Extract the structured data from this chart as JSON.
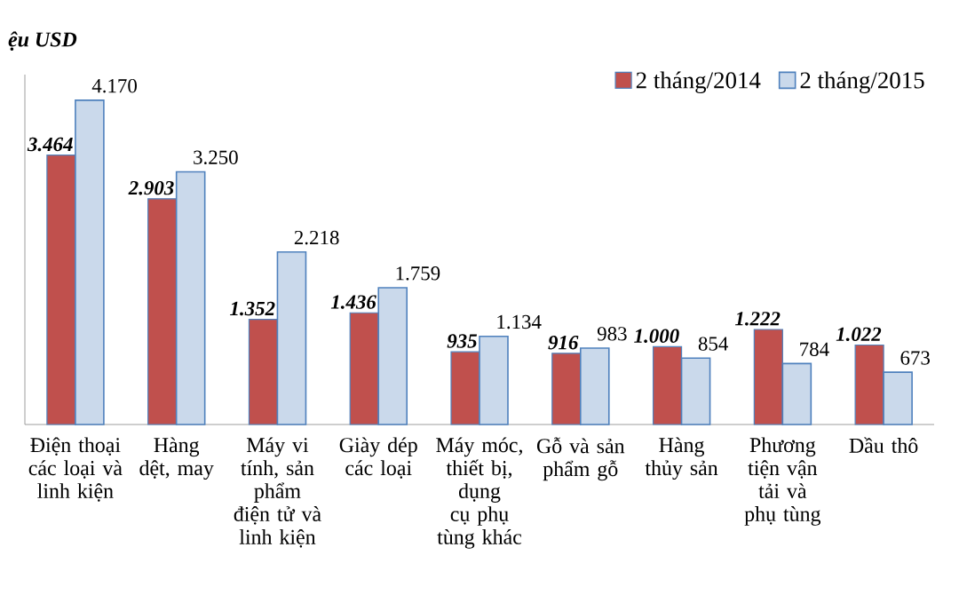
{
  "chart_data": {
    "type": "bar",
    "ylabel": "ệu USD",
    "categories": [
      "Điện thoại các loại và linh kiện",
      "Hàng dệt, may",
      "Máy vi tính, sản phẩm điện tử và linh kiện",
      "Giày dép các loại",
      "Máy móc, thiết bị, dụng cụ phụ tùng khác",
      "Gỗ và sản phẩm gỗ",
      "Hàng thủy sản",
      "Phương tiện vận tải và phụ tùng",
      "Dầu thô"
    ],
    "series": [
      {
        "name": "2 tháng/2014",
        "color": "#c0504d",
        "values": [
          3464,
          2903,
          1352,
          1436,
          935,
          916,
          1000,
          1222,
          1022
        ],
        "value_labels": [
          "3.464",
          "2.903",
          "1.352",
          "1.436",
          "935",
          "916",
          "1.000",
          "1.222",
          "1.022"
        ]
      },
      {
        "name": "2 tháng/2015",
        "color": "#4f81bd",
        "values": [
          4170,
          3250,
          2218,
          1759,
          1134,
          983,
          854,
          784,
          673
        ],
        "value_labels": [
          "4.170",
          "3.250",
          "2.218",
          "1.759",
          "1.134",
          "983",
          "854",
          "784",
          "673"
        ]
      }
    ],
    "ylim": [
      0,
      4500
    ],
    "tick_labels": "x",
    "grid": false,
    "legend": "top right"
  }
}
